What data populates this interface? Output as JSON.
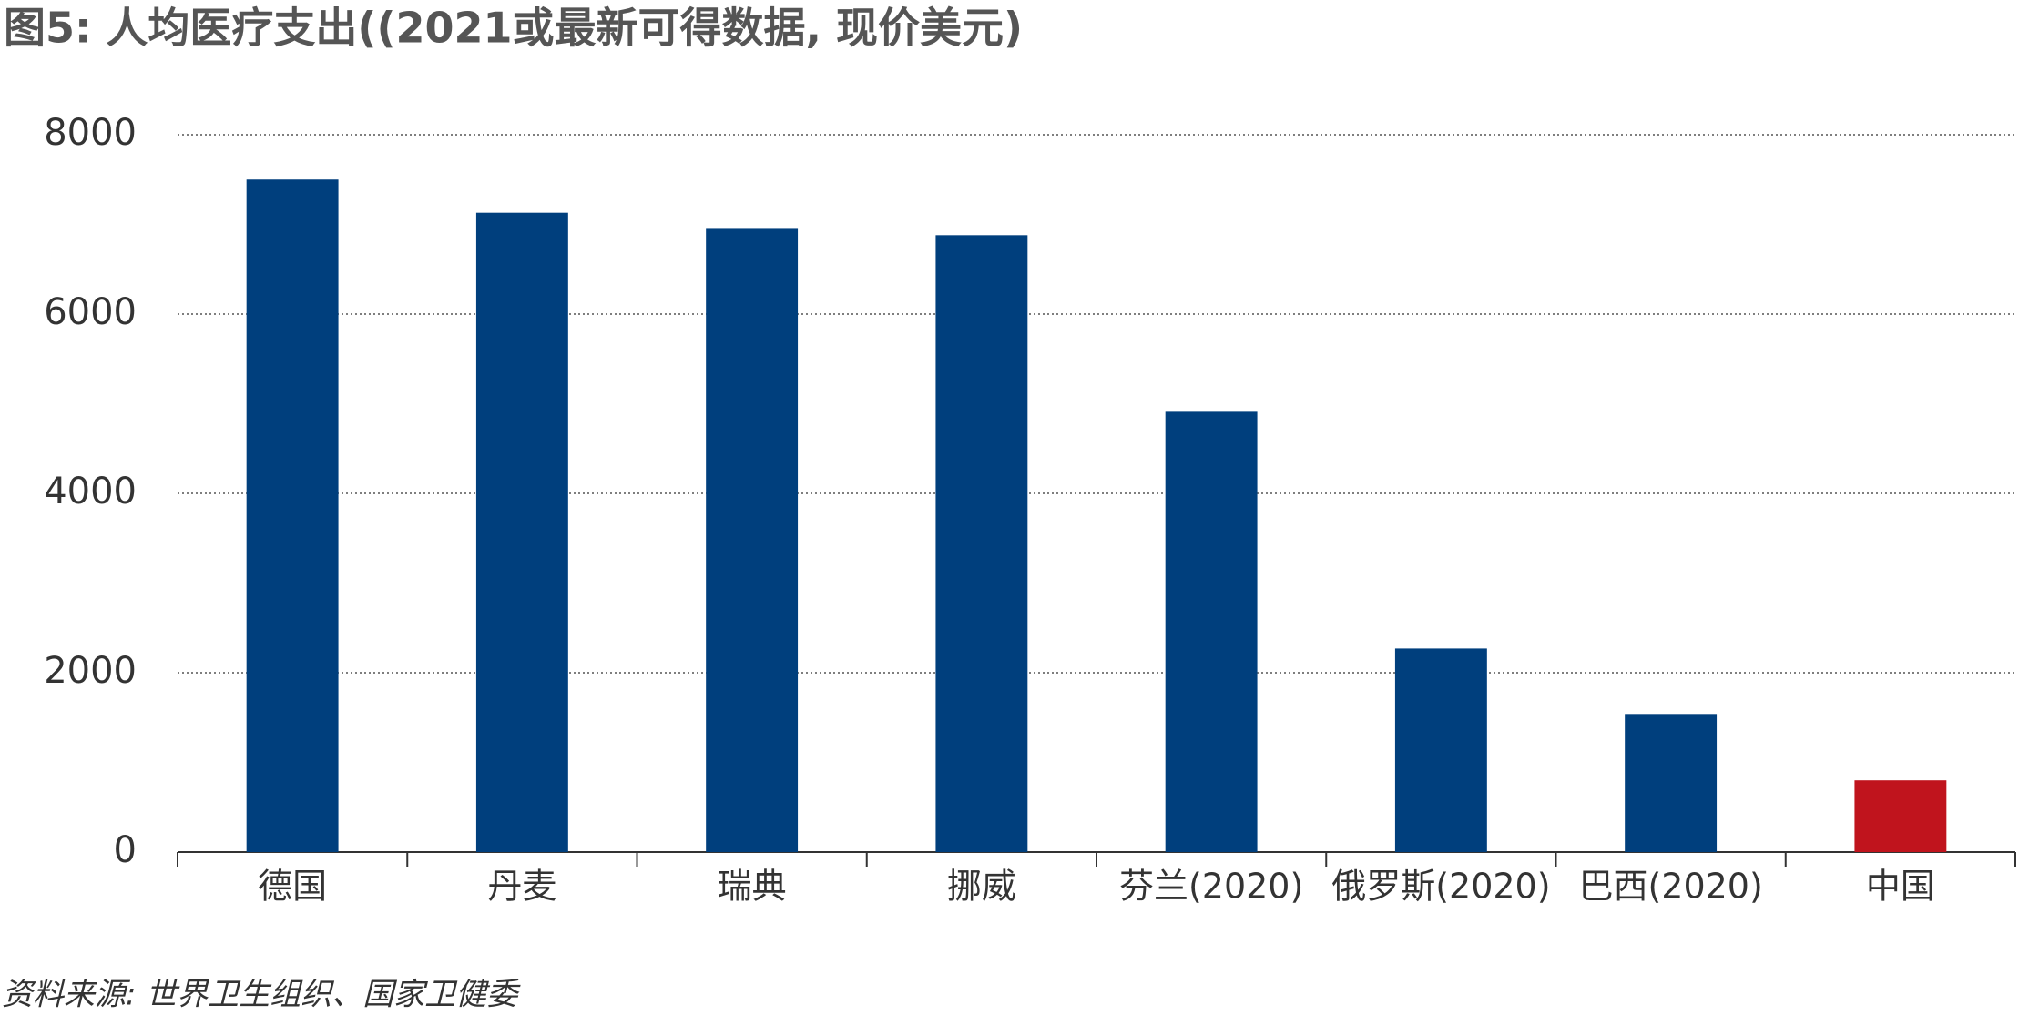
{
  "chart_data": {
    "type": "bar",
    "title": "图5: 人均医疗支出((2021或最新可得数据, 现价美元)",
    "source": "资料来源: 世界卫生组织、国家卫健委",
    "categories": [
      "德国",
      "丹麦",
      "瑞典",
      "挪威",
      "芬兰(2020)",
      "俄罗斯(2020)",
      "巴西(2020)",
      "中国"
    ],
    "values": [
      7500,
      7130,
      6950,
      6880,
      4910,
      2270,
      1540,
      800
    ],
    "colors": [
      "#003f7d",
      "#003f7d",
      "#003f7d",
      "#003f7d",
      "#003f7d",
      "#003f7d",
      "#003f7d",
      "#c0141d"
    ],
    "ylim": [
      0,
      8000
    ],
    "yticks": [
      0,
      2000,
      4000,
      6000,
      8000
    ],
    "grid": true
  }
}
